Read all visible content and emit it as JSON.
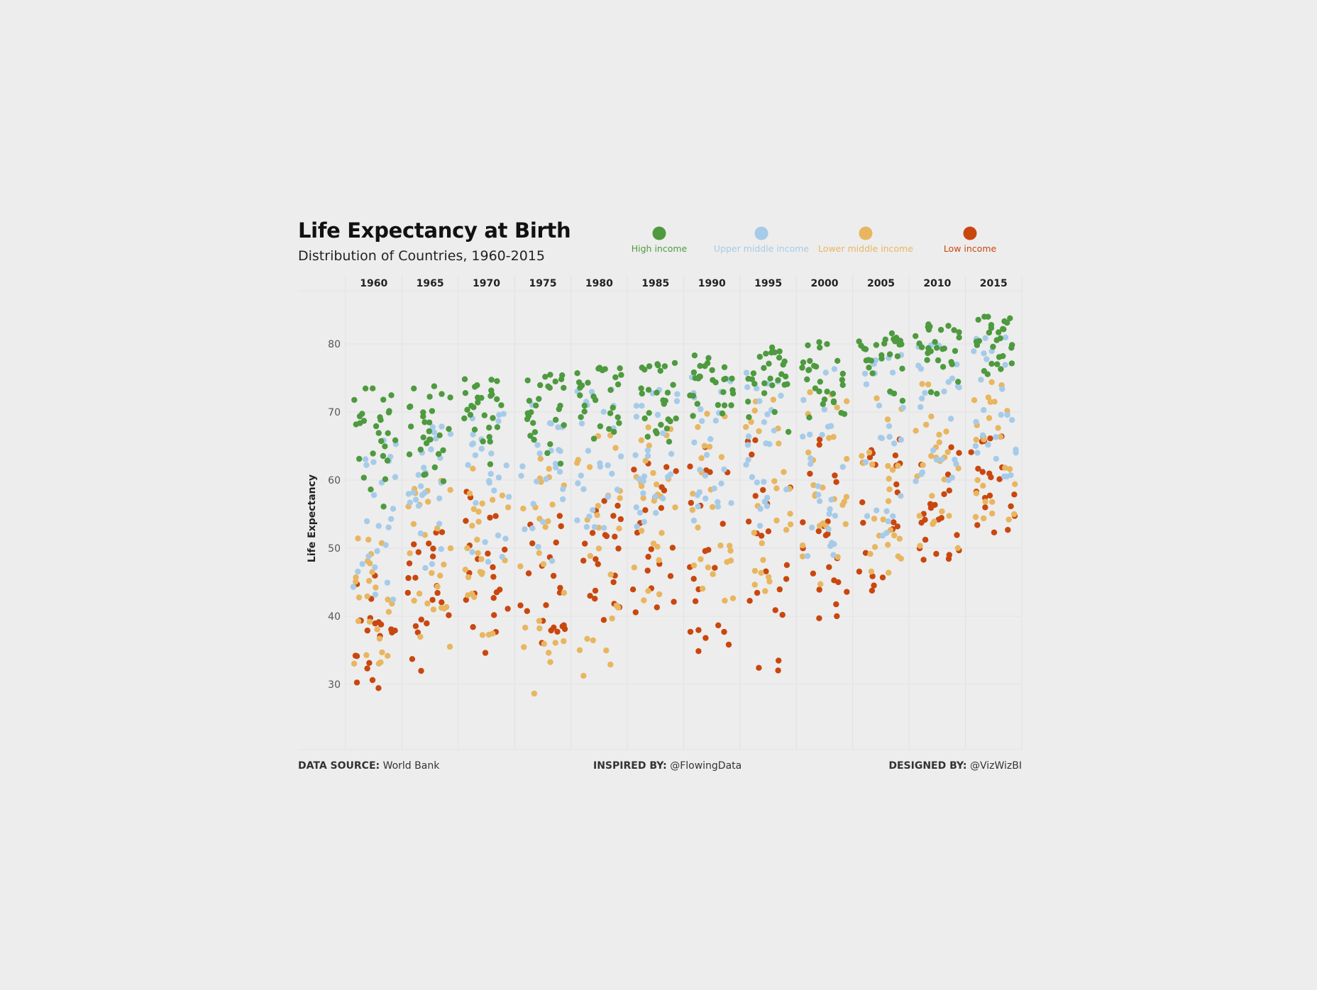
{
  "title": "Life Expectancy at Birth",
  "subtitle": "Distribution of Countries, 1960-2015",
  "footer": {
    "source_label": "DATA SOURCE:",
    "source_value": "World Bank",
    "inspired_label": "INSPIRED BY:",
    "inspired_value": "@FlowingData",
    "designed_label": "DESIGNED BY:",
    "designed_value": "@VizWizBI"
  },
  "colors": {
    "background": "#ededed",
    "high": "#4e9a3f",
    "upper_middle": "#a6cbe9",
    "lower_middle": "#e8b660",
    "low": "#c9470f",
    "grid": "#e2e2e2"
  },
  "chart_data": {
    "type": "scatter",
    "title": "Life Expectancy at Birth",
    "subtitle": "Distribution of Countries, 1960-2015",
    "ylabel": "Life Expectancy",
    "ylim": [
      20,
      85
    ],
    "yticks": [
      30,
      40,
      50,
      60,
      70,
      80
    ],
    "columns": [
      "1960",
      "1965",
      "1970",
      "1975",
      "1980",
      "1985",
      "1990",
      "1995",
      "2000",
      "2005",
      "2010",
      "2015"
    ],
    "grid": true,
    "legend_position": "top-right",
    "series": [
      {
        "name": "High income",
        "color": "#4e9a3f",
        "key": "high",
        "ranges": [
          [
            53,
            73.5
          ],
          [
            57,
            74
          ],
          [
            62,
            75
          ],
          [
            62,
            75.5
          ],
          [
            63,
            76.5
          ],
          [
            63,
            77.5
          ],
          [
            68,
            78.5
          ],
          [
            66,
            79.5
          ],
          [
            68,
            81
          ],
          [
            70,
            82
          ],
          [
            72,
            83
          ],
          [
            73,
            84
          ]
        ]
      },
      {
        "name": "Upper middle income",
        "color": "#a6cbe9",
        "key": "upper_middle",
        "ranges": [
          [
            42,
            66
          ],
          [
            47,
            68
          ],
          [
            47,
            70
          ],
          [
            46,
            72
          ],
          [
            50,
            74
          ],
          [
            53,
            75
          ],
          [
            54,
            76
          ],
          [
            50,
            77
          ],
          [
            48,
            78
          ],
          [
            51,
            79
          ],
          [
            58,
            80
          ],
          [
            60,
            81
          ]
        ]
      },
      {
        "name": "Lower middle income",
        "color": "#e8b660",
        "key": "lower_middle",
        "ranges": [
          [
            33,
            52
          ],
          [
            35,
            60
          ],
          [
            37,
            62
          ],
          [
            24,
            65
          ],
          [
            28,
            67
          ],
          [
            42,
            68
          ],
          [
            42,
            70
          ],
          [
            43,
            72
          ],
          [
            44,
            73
          ],
          [
            46,
            74
          ],
          [
            48,
            75
          ],
          [
            52,
            76
          ]
        ]
      },
      {
        "name": "Low income",
        "color": "#c9470f",
        "key": "low",
        "ranges": [
          [
            28,
            46
          ],
          [
            29.5,
            53
          ],
          [
            32,
            59
          ],
          [
            35,
            56
          ],
          [
            39,
            58
          ],
          [
            40,
            63
          ],
          [
            34,
            65
          ],
          [
            32,
            66
          ],
          [
            38.5,
            66
          ],
          [
            43.5,
            66
          ],
          [
            47.5,
            66
          ],
          [
            51.5,
            67
          ]
        ]
      }
    ],
    "counts": {
      "high": 28,
      "upper_middle": 26,
      "lower_middle": 26,
      "low": 22
    }
  }
}
